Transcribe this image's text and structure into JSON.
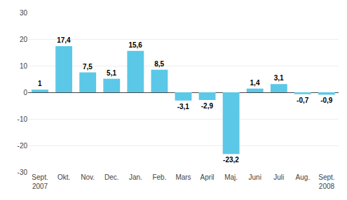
{
  "chart_data": {
    "type": "bar",
    "categories": [
      "Sept.\n2007",
      "Okt.",
      "Nov.",
      "Dec.",
      "Jan.",
      "Feb.",
      "Mars",
      "April",
      "Maj.",
      "Juni",
      "Juli",
      "Aug.",
      "Sept.\n2008"
    ],
    "values": [
      1.0,
      17.4,
      7.5,
      5.1,
      15.6,
      8.5,
      -3.1,
      -2.9,
      -23.2,
      1.4,
      3.1,
      -0.7,
      -0.9
    ],
    "value_labels": [
      "1",
      "17,4",
      "7,5",
      "5,1",
      "15,6",
      "8,5",
      "-3,1",
      "-2,9",
      "-23,2",
      "1,4",
      "3,1",
      "-0,7",
      "-0,9"
    ],
    "data_labels": true,
    "color": "#5BC8E8",
    "ylim": [
      -30,
      30
    ],
    "yticks": [
      -30,
      -20,
      -10,
      0,
      10,
      20,
      30
    ],
    "grid": true
  }
}
